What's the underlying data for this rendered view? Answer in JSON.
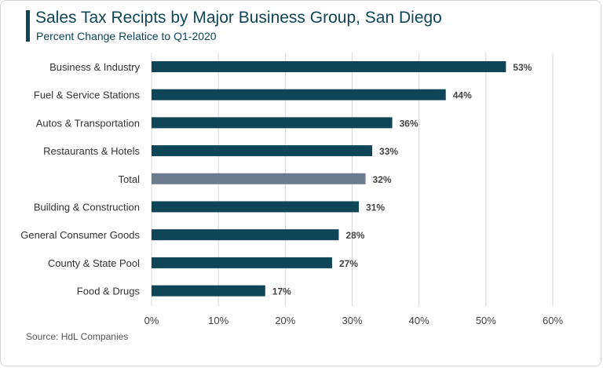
{
  "colors": {
    "bar": "#0e4657",
    "highlight_bar": "#6b7a8c",
    "grid": "#d9d9d9",
    "title": "#0e4657"
  },
  "chart_data": {
    "type": "bar",
    "orientation": "horizontal",
    "title": "Sales Tax Recipts by Major Business Group, San Diego",
    "subtitle": "Percent Change Relatice to Q1-2020",
    "source": "Source: HdL Companies",
    "categories": [
      "Business & Industry",
      "Fuel & Service Stations",
      "Autos & Transportation",
      "Restaurants & Hotels",
      "Total",
      "Building & Construction",
      "General Consumer Goods",
      "County & State Pool",
      "Food & Drugs"
    ],
    "values": [
      53,
      44,
      36,
      33,
      32,
      31,
      28,
      27,
      17
    ],
    "value_labels": [
      "53%",
      "44%",
      "36%",
      "33%",
      "32%",
      "31%",
      "28%",
      "27%",
      "17%"
    ],
    "highlight_category": "Total",
    "xlim": [
      0,
      60
    ],
    "xticks": [
      0,
      10,
      20,
      30,
      40,
      50,
      60
    ],
    "xtick_labels": [
      "0%",
      "10%",
      "20%",
      "30%",
      "40%",
      "50%",
      "60%"
    ],
    "xlabel": "",
    "ylabel": "",
    "grid": "vertical",
    "legend": "none"
  }
}
